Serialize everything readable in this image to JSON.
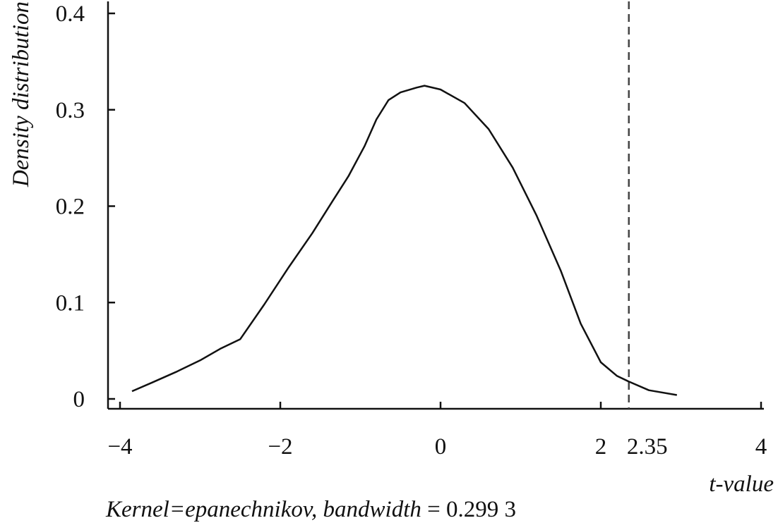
{
  "chart_data": {
    "type": "line",
    "title": "",
    "xlabel": "t-value",
    "ylabel": "Density distribution",
    "xlim": [
      -4.1,
      4.0
    ],
    "ylim": [
      -0.01,
      0.4
    ],
    "xticks": [
      -4,
      -2,
      0,
      2,
      4
    ],
    "xtick_labels": [
      "−4",
      "−2",
      "0",
      "2",
      "4"
    ],
    "yticks": [
      0,
      0.1,
      0.2,
      0.3,
      0.4
    ],
    "ytick_labels": [
      "0",
      "0.1",
      "0.2",
      "0.3",
      "0.4"
    ],
    "grid": false,
    "series": [
      {
        "x": [
          -3.85,
          -3.6,
          -3.3,
          -3.0,
          -2.75,
          -2.5,
          -2.2,
          -1.9,
          -1.6,
          -1.35,
          -1.15,
          -0.95,
          -0.8,
          -0.65,
          -0.5,
          -0.3,
          -0.2,
          0.0,
          0.3,
          0.6,
          0.9,
          1.2,
          1.5,
          1.75,
          2.0,
          2.2,
          2.35,
          2.6,
          2.95
        ],
        "y": [
          0.008,
          0.017,
          0.028,
          0.04,
          0.052,
          0.062,
          0.098,
          0.136,
          0.172,
          0.205,
          0.231,
          0.262,
          0.29,
          0.31,
          0.318,
          0.323,
          0.325,
          0.321,
          0.307,
          0.28,
          0.24,
          0.19,
          0.133,
          0.078,
          0.038,
          0.024,
          0.018,
          0.009,
          0.004
        ]
      }
    ],
    "reference_line": {
      "x": 2.35,
      "label": "2.35",
      "style": "dashed"
    }
  },
  "caption": {
    "kernel_text": "Kernel=epanechnikov, bandwidth",
    "value_text": " = 0.299 3"
  }
}
